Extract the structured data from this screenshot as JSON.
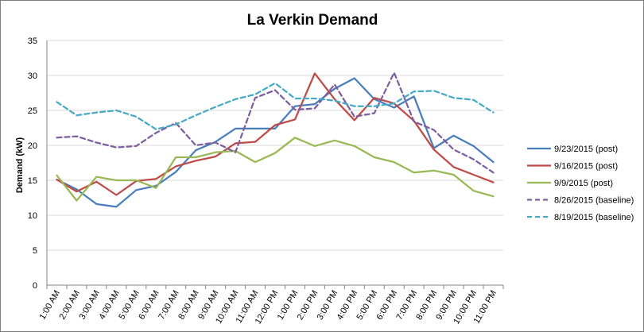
{
  "chart_data": {
    "type": "line",
    "title": "La Verkin Demand",
    "xlabel": "",
    "ylabel": "Demand (kW)",
    "ylim": [
      0,
      35
    ],
    "yticks": [
      "0",
      "5",
      "10",
      "15",
      "20",
      "25",
      "30",
      "35"
    ],
    "grid": "horizontal",
    "legend_position": "right",
    "categories": [
      "1:00 AM",
      "2:00 AM",
      "3:00 AM",
      "4:00 AM",
      "5:00 AM",
      "6:00 AM",
      "7:00 AM",
      "8:00 AM",
      "9:00 AM",
      "10:00 AM",
      "11:00 AM",
      "12:00 PM",
      "1:00 PM",
      "2:00 PM",
      "3:00 PM",
      "4:00 PM",
      "5:00 PM",
      "6:00 PM",
      "7:00 PM",
      "8:00 PM",
      "9:00 PM",
      "10:00 PM",
      "11:00 PM"
    ],
    "series": [
      {
        "name": "9/23/2015 (post)",
        "color": "#4a7ebb",
        "dash": "solid",
        "values": [
          15.1,
          13.7,
          11.6,
          11.2,
          13.6,
          14.2,
          16.2,
          19.3,
          20.5,
          22.4,
          22.4,
          22.4,
          25.6,
          25.9,
          28.1,
          29.6,
          26.6,
          25.4,
          27.0,
          19.6,
          21.4,
          19.9,
          17.6
        ]
      },
      {
        "name": "9/16/2015 (post)",
        "color": "#be4b48",
        "dash": "solid",
        "values": [
          15.1,
          13.4,
          14.8,
          12.9,
          14.9,
          15.2,
          17.0,
          17.8,
          18.4,
          20.3,
          20.5,
          22.9,
          23.7,
          30.3,
          26.6,
          23.6,
          26.8,
          26.0,
          23.5,
          19.4,
          16.9,
          15.8,
          14.7
        ]
      },
      {
        "name": "9/9/2015 (post)",
        "color": "#98b954",
        "dash": "solid",
        "values": [
          15.7,
          12.1,
          15.5,
          15.0,
          15.0,
          13.9,
          18.3,
          18.3,
          19.0,
          19.2,
          17.6,
          18.9,
          21.1,
          19.9,
          20.7,
          19.9,
          18.3,
          17.6,
          16.1,
          16.4,
          15.8,
          13.5,
          12.7
        ]
      },
      {
        "name": "8/26/2015 (baseline)",
        "color": "#7d5fa0",
        "dash": "dashed",
        "values": [
          21.1,
          21.3,
          20.4,
          19.7,
          19.9,
          21.8,
          23.2,
          20.0,
          20.4,
          19.0,
          26.8,
          27.9,
          25.1,
          25.3,
          28.7,
          24.1,
          24.6,
          30.4,
          23.4,
          22.2,
          19.4,
          18.0,
          16.1
        ]
      },
      {
        "name": "8/19/2015 (baseline)",
        "color": "#46aac5",
        "dash": "dashed",
        "values": [
          26.2,
          24.3,
          24.7,
          25.0,
          24.1,
          22.3,
          23.0,
          24.3,
          25.5,
          26.6,
          27.3,
          28.9,
          26.7,
          26.7,
          26.4,
          25.6,
          25.6,
          26.0,
          27.7,
          27.8,
          26.8,
          26.5,
          24.7
        ]
      }
    ]
  }
}
